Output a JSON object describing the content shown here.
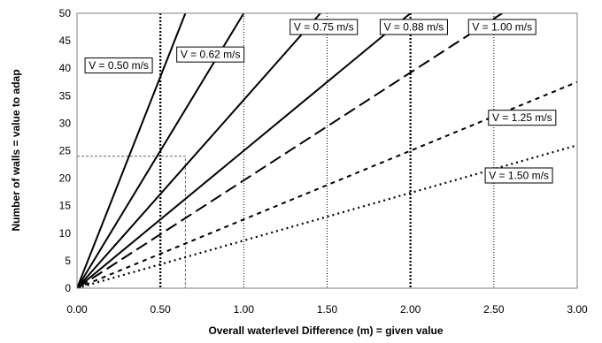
{
  "chart_data": {
    "type": "line",
    "xlabel": "Overall waterlevel Difference (m) = given value",
    "ylabel": "Number of walls = value to adap",
    "xlim": [
      0,
      3
    ],
    "ylim": [
      0,
      50
    ],
    "x_ticks": [
      "0.00",
      "0.50",
      "1.00",
      "1.50",
      "2.00",
      "2.50",
      "3.00"
    ],
    "y_ticks": [
      "0",
      "5",
      "10",
      "15",
      "20",
      "25",
      "30",
      "35",
      "40",
      "45",
      "50"
    ],
    "grid": "vertical dotted lines at x ticks",
    "series": [
      {
        "name": "V = 0.50 m/s",
        "style": "solid",
        "x": [
          0,
          0.65
        ],
        "y": [
          0,
          50.0
        ]
      },
      {
        "name": "V = 0.62 m/s",
        "style": "solid",
        "x": [
          0,
          1.0
        ],
        "y": [
          0,
          50.0
        ]
      },
      {
        "name": "V = 0.75 m/s",
        "style": "solid",
        "x": [
          0,
          1.46
        ],
        "y": [
          0,
          50.0
        ]
      },
      {
        "name": "V = 0.88 m/s",
        "style": "solid",
        "x": [
          0,
          2.0
        ],
        "y": [
          0,
          50.0
        ]
      },
      {
        "name": "V = 1.00 m/s",
        "style": "long-dash",
        "x": [
          0,
          2.55
        ],
        "y": [
          0,
          50.0
        ]
      },
      {
        "name": "V = 1.25 m/s",
        "style": "short-dash",
        "x": [
          0,
          3.0
        ],
        "y": [
          0,
          37.5
        ]
      },
      {
        "name": "V = 1.50 m/s",
        "style": "dotted",
        "x": [
          0,
          3.0
        ],
        "y": [
          0,
          26.0
        ]
      }
    ],
    "reference_box": {
      "x": 0.65,
      "y": 24
    },
    "annotations": [
      {
        "text": "V = 0.50 m/s",
        "x": 0.25,
        "y": 40.5
      },
      {
        "text": "V = 0.62 m/s",
        "x": 0.8,
        "y": 42.5
      },
      {
        "text": "V = 0.75 m/s",
        "x": 1.48,
        "y": 47.5
      },
      {
        "text": "V = 0.88 m/s",
        "x": 2.02,
        "y": 47.5
      },
      {
        "text": "V = 1.00 m/s",
        "x": 2.55,
        "y": 47.5
      },
      {
        "text": "V = 1.25 m/s",
        "x": 2.67,
        "y": 31.0
      },
      {
        "text": "V = 1.50 m/s",
        "x": 2.65,
        "y": 20.5
      }
    ]
  }
}
